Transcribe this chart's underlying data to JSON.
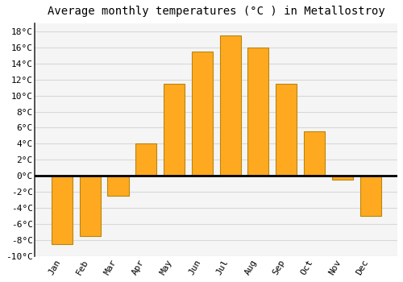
{
  "title": "Average monthly temperatures (°C ) in Metallostroy",
  "months": [
    "Jan",
    "Feb",
    "Mar",
    "Apr",
    "May",
    "Jun",
    "Jul",
    "Aug",
    "Sep",
    "Oct",
    "Nov",
    "Dec"
  ],
  "temperatures": [
    -8.5,
    -7.5,
    -2.5,
    4.0,
    11.5,
    15.5,
    17.5,
    16.0,
    11.5,
    5.5,
    -0.5,
    -5.0
  ],
  "bar_color_face": "#FFA920",
  "bar_color_edge": "#B8860B",
  "ylim": [
    -10,
    19
  ],
  "yticks": [
    -10,
    -8,
    -6,
    -4,
    -2,
    0,
    2,
    4,
    6,
    8,
    10,
    12,
    14,
    16,
    18
  ],
  "background_color": "#ffffff",
  "plot_bg_color": "#f5f5f5",
  "grid_color": "#d8d8d8",
  "title_fontsize": 10,
  "tick_fontsize": 8,
  "zero_line_color": "#000000",
  "left_spine_color": "#333333"
}
